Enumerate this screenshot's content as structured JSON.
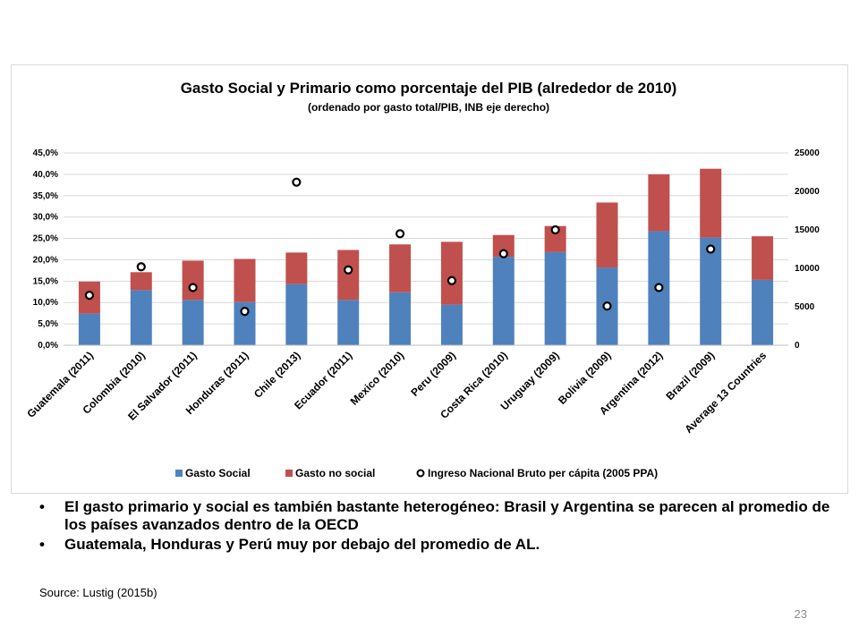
{
  "chart_data": {
    "type": "bar",
    "title": "Gasto Social y Primario como porcentaje del PIB (alrededor de 2010)",
    "subtitle": "(ordenado por gasto total/PIB, INB eje derecho)",
    "categories": [
      "Guatemala (2011)",
      "Colombia (2010)",
      "El Salvador (2011)",
      "Honduras (2011)",
      "Chile (2013)",
      "Ecuador (2011)",
      "Mexico (2010)",
      "Peru (2009)",
      "Costa Rica (2010)",
      "Uruguay (2009)",
      "Bolivia (2009)",
      "Argentina (2012)",
      "Brazil (2009)",
      "Average 13 Countries"
    ],
    "series": [
      {
        "name": "Gasto Social",
        "kind": "bar",
        "stacked": true,
        "color": "#4f81bd",
        "values": [
          7.4,
          12.9,
          10.6,
          10.1,
          14.3,
          10.6,
          12.4,
          9.5,
          20.7,
          21.8,
          18.2,
          26.7,
          25.2,
          15.3
        ]
      },
      {
        "name": "Gasto no social",
        "kind": "bar",
        "stacked": true,
        "color": "#c0504d",
        "values": [
          7.5,
          4.2,
          9.2,
          10.1,
          7.4,
          11.7,
          11.2,
          14.7,
          5.1,
          6.1,
          15.2,
          13.3,
          16.1,
          10.2
        ]
      },
      {
        "name": "Ingreso Nacional Bruto per cápita (2005 PPA)",
        "kind": "scatter",
        "axis": "right",
        "values": [
          6500,
          10200,
          7500,
          4400,
          21200,
          9800,
          14500,
          8400,
          11900,
          15000,
          5100,
          7500,
          12500,
          null
        ]
      }
    ],
    "yticks_left": [
      "0,0%",
      "5,0%",
      "10,0%",
      "15,0%",
      "20,0%",
      "25,0%",
      "30,0%",
      "35,0%",
      "40,0%",
      "45,0%"
    ],
    "yticks_right": [
      "0",
      "5000",
      "10000",
      "15000",
      "20000",
      "25000"
    ],
    "ylim": [
      0,
      45
    ],
    "ylim_right": [
      0,
      25000
    ],
    "legend_position": "bottom",
    "grid": true
  },
  "bullets": [
    "El gasto primario y social es también bastante heterogéneo: Brasil y Argentina se parecen al promedio de los países avanzados dentro de la OECD",
    "Guatemala, Honduras y Perú muy por debajo del promedio de AL."
  ],
  "bullet_symbol": "•",
  "source": "Source: Lustig (2015b)",
  "page_number": "23"
}
